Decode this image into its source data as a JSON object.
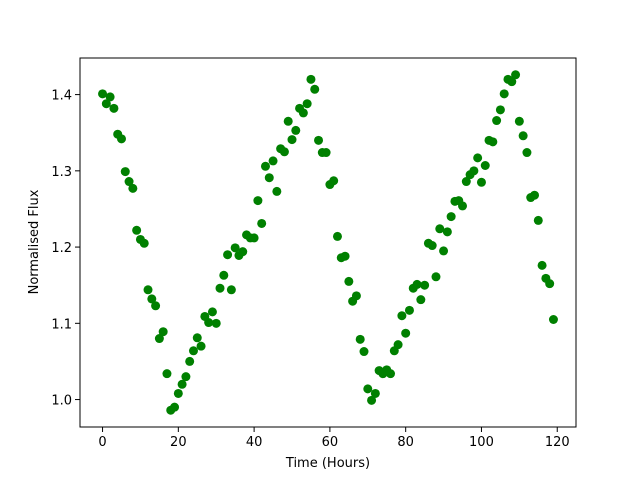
{
  "chart_data": {
    "type": "scatter",
    "xlabel": "Time (Hours)",
    "ylabel": "Normalised Flux",
    "x": [
      0,
      1,
      2,
      3,
      4,
      5,
      6,
      7,
      8,
      9,
      10,
      11,
      12,
      13,
      14,
      15,
      16,
      17,
      18,
      19,
      20,
      21,
      22,
      23,
      24,
      25,
      26,
      27,
      28,
      29,
      30,
      31,
      32,
      33,
      34,
      35,
      36,
      37,
      38,
      39,
      40,
      41,
      42,
      43,
      44,
      45,
      46,
      47,
      48,
      49,
      50,
      51,
      52,
      53,
      54,
      55,
      56,
      57,
      58,
      59,
      60,
      61,
      62,
      63,
      64,
      65,
      66,
      67,
      68,
      69,
      70,
      71,
      72,
      73,
      74,
      75,
      76,
      77,
      78,
      79,
      80,
      81,
      82,
      83,
      84,
      85,
      86,
      87,
      88,
      89,
      90,
      91,
      92,
      93,
      94,
      95,
      96,
      97,
      98,
      99,
      100,
      101,
      102,
      103,
      104,
      105,
      106,
      107,
      108,
      109,
      110,
      111,
      112,
      113,
      114,
      115,
      116,
      117,
      118,
      119
    ],
    "values": [
      1.401,
      1.388,
      1.397,
      1.382,
      1.348,
      1.342,
      1.299,
      1.286,
      1.277,
      1.222,
      1.21,
      1.205,
      1.144,
      1.132,
      1.123,
      1.08,
      1.089,
      1.034,
      0.986,
      0.99,
      1.008,
      1.02,
      1.03,
      1.05,
      1.064,
      1.081,
      1.07,
      1.109,
      1.101,
      1.115,
      1.1,
      1.146,
      1.163,
      1.19,
      1.144,
      1.199,
      1.189,
      1.194,
      1.216,
      1.212,
      1.212,
      1.261,
      1.231,
      1.306,
      1.291,
      1.313,
      1.273,
      1.329,
      1.325,
      1.365,
      1.341,
      1.353,
      1.382,
      1.376,
      1.388,
      1.42,
      1.407,
      1.34,
      1.324,
      1.324,
      1.282,
      1.287,
      1.214,
      1.186,
      1.188,
      1.155,
      1.129,
      1.136,
      1.079,
      1.063,
      1.014,
      0.999,
      1.008,
      1.038,
      1.034,
      1.039,
      1.034,
      1.064,
      1.072,
      1.11,
      1.087,
      1.117,
      1.146,
      1.151,
      1.131,
      1.15,
      1.205,
      1.202,
      1.161,
      1.224,
      1.195,
      1.22,
      1.24,
      1.26,
      1.261,
      1.254,
      1.286,
      1.295,
      1.3,
      1.317,
      1.285,
      1.307,
      1.34,
      1.338,
      1.366,
      1.38,
      1.401,
      1.42,
      1.417,
      1.426,
      1.365,
      1.346,
      1.324,
      1.265,
      1.268,
      1.235,
      1.176,
      1.159,
      1.152,
      1.105
    ],
    "color": "#008000",
    "xlim": [
      -5.95,
      124.95
    ],
    "ylim": [
      0.964,
      1.448
    ],
    "xticks": [
      0,
      20,
      40,
      60,
      80,
      100,
      120
    ],
    "yticks": [
      {
        "value": 1,
        "label": "1.0"
      },
      1.1,
      1.2,
      1.3,
      1.4
    ]
  }
}
